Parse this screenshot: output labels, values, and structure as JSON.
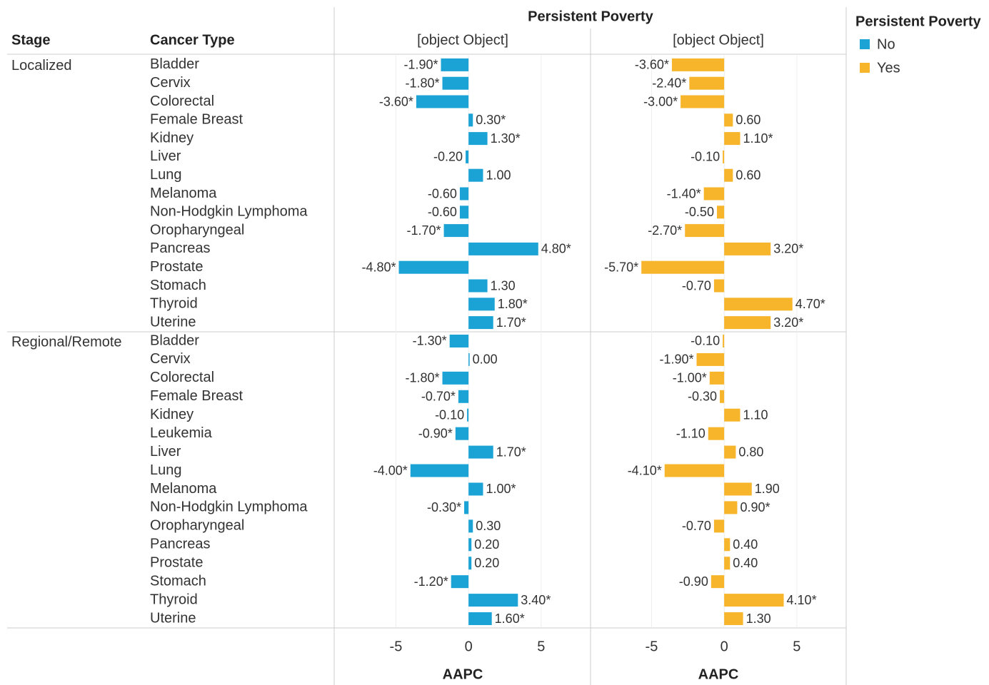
{
  "chart_data": {
    "type": "bar",
    "orientation": "horizontal",
    "column_header": "Persistent Poverty",
    "row_headers": [
      "Stage",
      "Cancer Type"
    ],
    "groups": [
      {
        "name": "Localized",
        "categories": [
          "Bladder",
          "Cervix",
          "Colorectal",
          "Female Breast",
          "Kidney",
          "Liver",
          "Lung",
          "Melanoma",
          "Non-Hodgkin Lymphoma",
          "Oropharyngeal",
          "Pancreas",
          "Prostate",
          "Stomach",
          "Thyroid",
          "Uterine"
        ]
      },
      {
        "name": "Regional/Remote",
        "categories": [
          "Bladder",
          "Cervix",
          "Colorectal",
          "Female Breast",
          "Kidney",
          "Leukemia",
          "Liver",
          "Lung",
          "Melanoma",
          "Non-Hodgkin Lymphoma",
          "Oropharyngeal",
          "Pancreas",
          "Prostate",
          "Stomach",
          "Thyroid",
          "Uterine"
        ]
      }
    ],
    "series": [
      {
        "name": "No",
        "color": "#1ba3d6",
        "values": [
          [
            -1.9,
            -1.8,
            -3.6,
            0.3,
            1.3,
            -0.2,
            1.0,
            -0.6,
            -0.6,
            -1.7,
            4.8,
            -4.8,
            1.3,
            1.8,
            1.7
          ],
          [
            -1.3,
            0.0,
            -1.8,
            -0.7,
            -0.1,
            -0.9,
            1.7,
            -4.0,
            1.0,
            -0.3,
            0.3,
            0.2,
            0.2,
            -1.2,
            3.4,
            1.6
          ]
        ],
        "value_labels": [
          [
            "-1.90*",
            "-1.80*",
            "-3.60*",
            "0.30*",
            "1.30*",
            "-0.20",
            "1.00",
            "-0.60",
            "-0.60",
            "-1.70*",
            "4.80*",
            "-4.80*",
            "1.30",
            "1.80*",
            "1.70*"
          ],
          [
            "-1.30*",
            "0.00",
            "-1.80*",
            "-0.70*",
            "-0.10",
            "-0.90*",
            "1.70*",
            "-4.00*",
            "1.00*",
            "-0.30*",
            "0.30",
            "0.20",
            "0.20",
            "-1.20*",
            "3.40*",
            "1.60*"
          ]
        ]
      },
      {
        "name": "Yes",
        "color": "#f7b52c",
        "values": [
          [
            -3.6,
            -2.4,
            -3.0,
            0.6,
            1.1,
            -0.1,
            0.6,
            -1.4,
            -0.5,
            -2.7,
            3.2,
            -5.7,
            -0.7,
            4.7,
            3.2
          ],
          [
            -0.1,
            -1.9,
            -1.0,
            -0.3,
            1.1,
            -1.1,
            0.8,
            -4.1,
            1.9,
            0.9,
            -0.7,
            0.4,
            0.4,
            -0.9,
            4.1,
            1.3
          ]
        ],
        "value_labels": [
          [
            "-3.60*",
            "-2.40*",
            "-3.00*",
            "0.60",
            "1.10*",
            "-0.10",
            "0.60",
            "-1.40*",
            "-0.50",
            "-2.70*",
            "3.20*",
            "-5.70*",
            "-0.70",
            "4.70*",
            "3.20*"
          ],
          [
            "-0.10",
            "-1.90*",
            "-1.00*",
            "-0.30",
            "1.10",
            "-1.10",
            "0.80",
            "-4.10*",
            "1.90",
            "0.90*",
            "-0.70",
            "0.40",
            "0.40",
            "-0.90",
            "4.10*",
            "1.30"
          ]
        ]
      }
    ],
    "xlim": [
      -9.2,
      8.4
    ],
    "xticks": [
      -5,
      0,
      5
    ],
    "xlabel": "AAPC",
    "grid": true,
    "legend_title": "Persistent Poverty",
    "legend": "right"
  }
}
